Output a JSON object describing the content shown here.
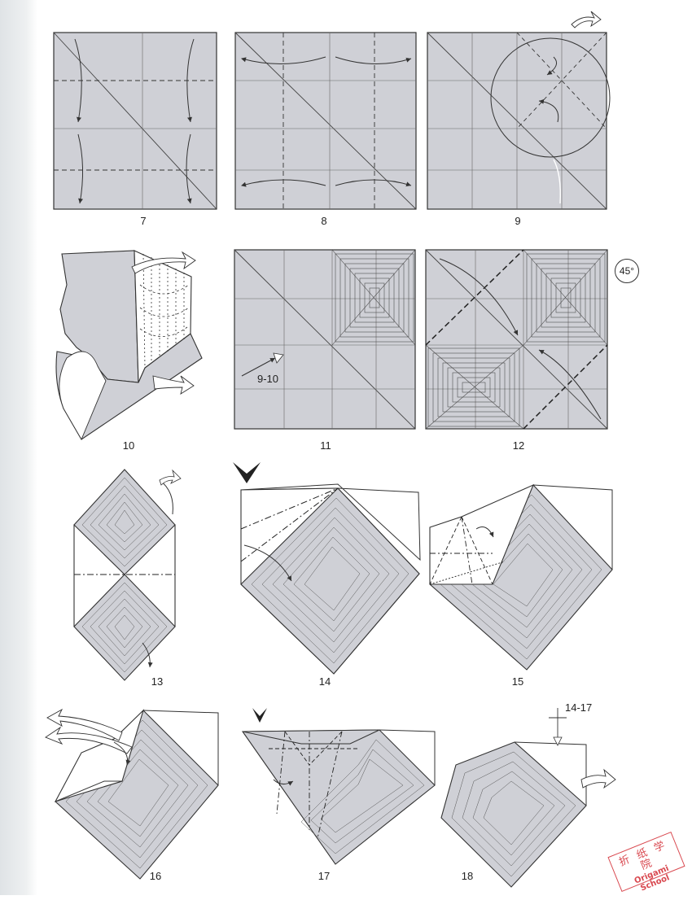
{
  "steps": [
    {
      "number": "7"
    },
    {
      "number": "8"
    },
    {
      "number": "9"
    },
    {
      "number": "10"
    },
    {
      "number": "11"
    },
    {
      "number": "12"
    },
    {
      "number": "13"
    },
    {
      "number": "14"
    },
    {
      "number": "15"
    },
    {
      "number": "16"
    },
    {
      "number": "17"
    },
    {
      "number": "18"
    }
  ],
  "annotations": {
    "repeat_9_10": "9-10",
    "repeat_14_17": "14-17",
    "rotate_angle": "45°"
  },
  "watermark": {
    "line1": "折 纸 学 院",
    "line2": "Origami School"
  },
  "colors": {
    "paper_gray": "#cfd0d6",
    "line": "#3a3a3a",
    "watermark_red": "#d9484f"
  },
  "icons": [
    "push-arrow-icon",
    "turn-over-arrow-icon",
    "rotate-icon",
    "fold-arrow-icon"
  ]
}
